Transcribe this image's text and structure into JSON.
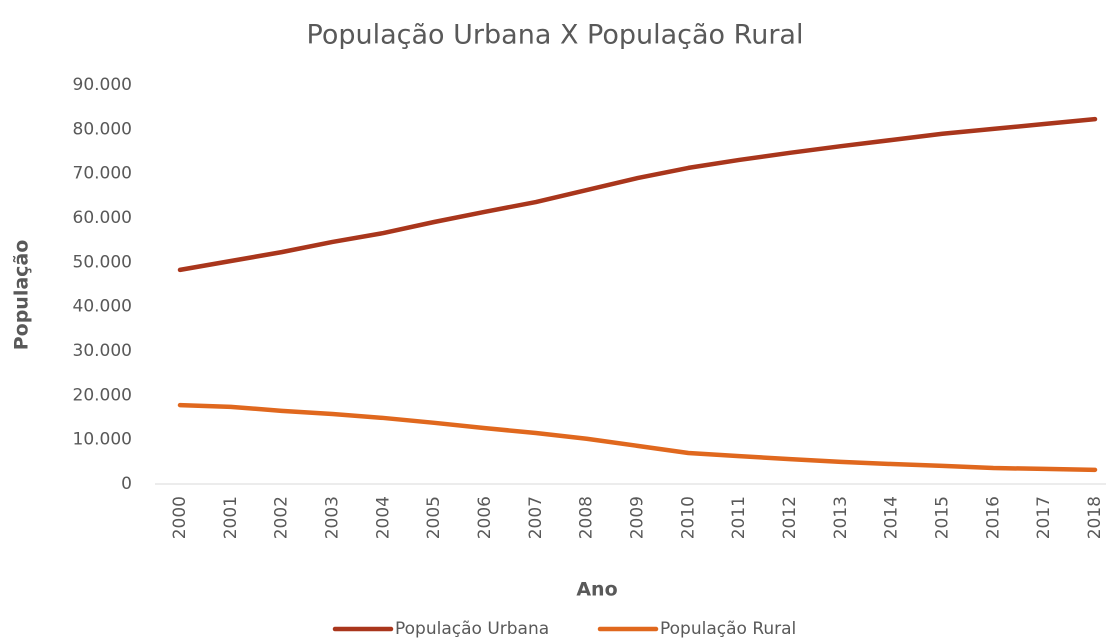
{
  "chart_data": {
    "type": "line",
    "title": "População Urbana X População Rural",
    "xlabel": "Ano",
    "ylabel": "População",
    "categories": [
      "2000",
      "2001",
      "2002",
      "2003",
      "2004",
      "2005",
      "2006",
      "2007",
      "2008",
      "2009",
      "2010",
      "2011",
      "2012",
      "2013",
      "2014",
      "2015",
      "2016",
      "2017",
      "2018"
    ],
    "series": [
      {
        "name": "População Urbana",
        "color": "#a9361c",
        "values": [
          48300,
          50300,
          52300,
          54600,
          56600,
          59100,
          61400,
          63600,
          66300,
          69000,
          71300,
          73100,
          74700,
          76200,
          77600,
          79000,
          80100,
          81200,
          82300
        ]
      },
      {
        "name": "População Rural",
        "color": "#e0681e",
        "values": [
          17800,
          17400,
          16500,
          15800,
          14900,
          13800,
          12600,
          11500,
          10200,
          8600,
          7000,
          6300,
          5600,
          5000,
          4500,
          4100,
          3600,
          3400,
          3200
        ]
      }
    ],
    "ylim": [
      0,
      90000
    ],
    "yticks": [
      0,
      {
        "value": 10000,
        "label": "10.000"
      },
      {
        "value": 20000,
        "label": "20.000"
      },
      {
        "value": 30000,
        "label": "30.000"
      },
      {
        "value": 40000,
        "label": "40.000"
      },
      {
        "value": 50000,
        "label": "50.000"
      },
      {
        "value": 60000,
        "label": "60.000"
      },
      {
        "value": 70000,
        "label": "70.000"
      },
      {
        "value": 80000,
        "label": "80.000"
      },
      {
        "value": 90000,
        "label": "90.000"
      }
    ],
    "grid": false,
    "legend": "bottom"
  }
}
